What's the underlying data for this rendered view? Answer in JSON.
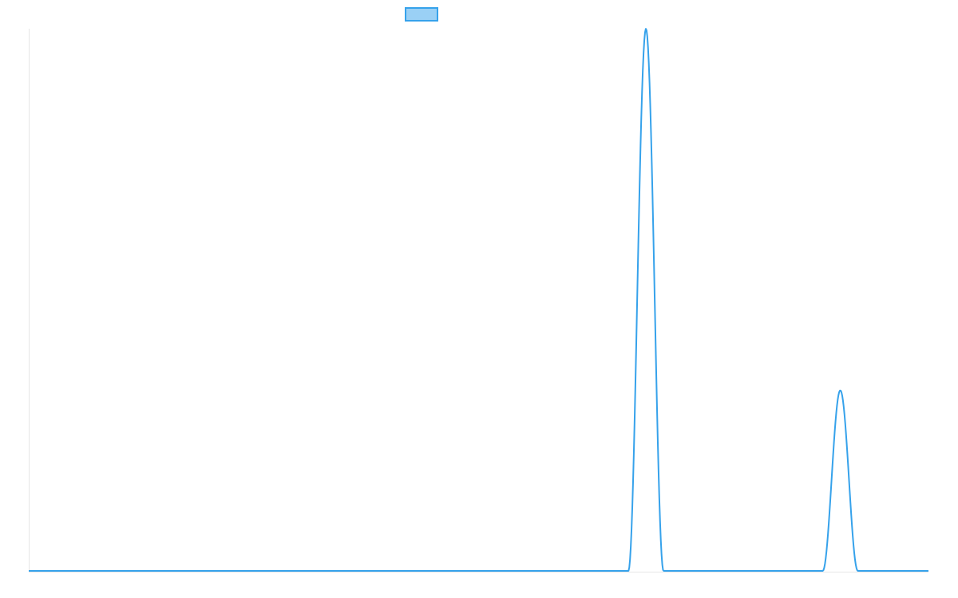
{
  "chart_data": {
    "type": "line",
    "title": "",
    "xlabel": "",
    "ylabel": "",
    "xlim": [
      0,
      100
    ],
    "ylim": [
      0,
      100
    ],
    "grid": false,
    "legend": {
      "placement": "top-center",
      "entries": [
        ""
      ]
    },
    "colors": {
      "line": "#36a2eb",
      "legend_fill": "#9ad0f5"
    },
    "series": [
      {
        "name": "",
        "peaks": [
          {
            "center": 68.6,
            "half_width": 1.95,
            "height": 100
          },
          {
            "center": 90.2,
            "half_width": 1.95,
            "height": 33.3
          }
        ],
        "x": [
          0,
          66.65,
          68.6,
          70.55,
          88.25,
          90.2,
          92.15,
          100
        ],
        "y": [
          0,
          0,
          100,
          0,
          0,
          33.3,
          0,
          0
        ]
      }
    ]
  }
}
